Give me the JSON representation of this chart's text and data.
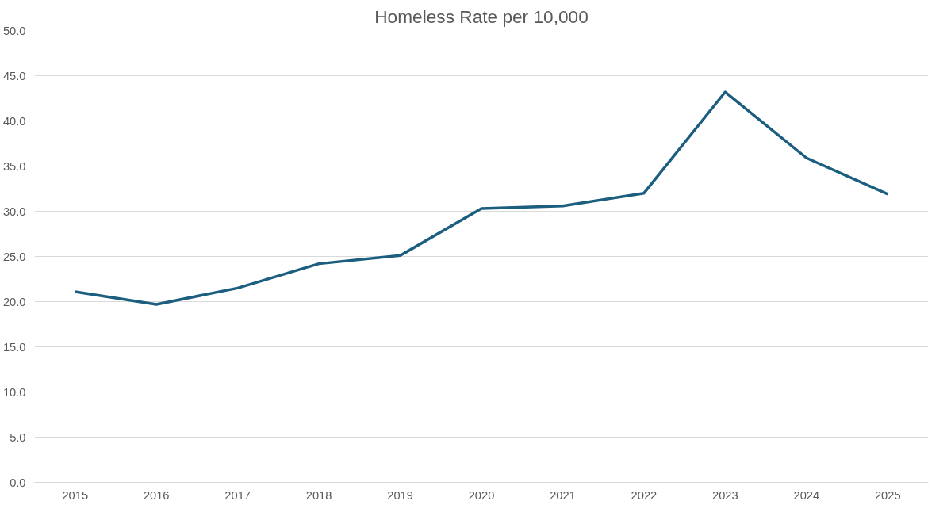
{
  "chart_data": {
    "type": "line",
    "title": "Homeless Rate per 10,000",
    "categories": [
      "2015",
      "2016",
      "2017",
      "2018",
      "2019",
      "2020",
      "2021",
      "2022",
      "2023",
      "2024",
      "2025"
    ],
    "series": [
      {
        "color": "#1b5e80",
        "values": [
          21.1,
          19.7,
          21.5,
          24.2,
          25.1,
          30.3,
          30.6,
          32.0,
          43.2,
          35.9,
          31.9
        ]
      }
    ],
    "ylim": [
      0,
      50
    ],
    "yticks": [
      {
        "value": 0,
        "label": "0.0"
      },
      {
        "value": 5,
        "label": "5.0"
      },
      {
        "value": 10,
        "label": "10.0"
      },
      {
        "value": 15,
        "label": "15.0"
      },
      {
        "value": 20,
        "label": "20.0"
      },
      {
        "value": 25,
        "label": "25.0"
      },
      {
        "value": 30,
        "label": "30.0"
      },
      {
        "value": 35,
        "label": "35.0"
      },
      {
        "value": 40,
        "label": "40.0"
      },
      {
        "value": 45,
        "label": "45.0"
      },
      {
        "value": 50,
        "label": "50.0"
      }
    ],
    "grid": "y",
    "marker": "none",
    "line_style": "solid"
  }
}
